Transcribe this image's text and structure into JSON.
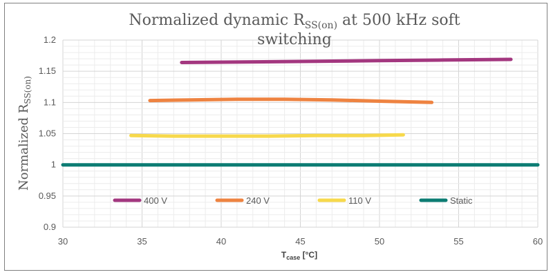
{
  "chart_data": {
    "type": "line",
    "title_prefix": "Normalized dynamic R",
    "title_subscript": "SS(on)",
    "title_suffix": " at 500 kHz soft",
    "title_line2": "switching",
    "ylabel_prefix": "Normalized R",
    "ylabel_subscript": "SS(on)",
    "xlabel_prefix": "T",
    "xlabel_subscript": "case",
    "xlabel_suffix": " [°C]",
    "xlim": [
      30,
      60
    ],
    "ylim": [
      0.9,
      1.2
    ],
    "x_ticks": [
      30,
      35,
      40,
      45,
      50,
      55,
      60
    ],
    "x_tick_labels": [
      "30",
      "35",
      "40",
      "45",
      "50",
      "55",
      "60"
    ],
    "y_ticks": [
      0.9,
      0.95,
      1.0,
      1.05,
      1.1,
      1.15,
      1.2
    ],
    "y_tick_labels": [
      "0.9",
      "0.95",
      "1",
      "1.05",
      "1.1",
      "1.15",
      "1.2"
    ],
    "grid": true,
    "legend_position": "inside-bottom",
    "series": [
      {
        "name": "400 V",
        "color": "#a3377f",
        "x": [
          37.5,
          42,
          46,
          50,
          54,
          58.3
        ],
        "y": [
          1.164,
          1.165,
          1.166,
          1.167,
          1.168,
          1.169
        ]
      },
      {
        "name": "240 V",
        "color": "#ee8341",
        "x": [
          35.5,
          38,
          41,
          44,
          47,
          50,
          53.3
        ],
        "y": [
          1.103,
          1.104,
          1.105,
          1.105,
          1.104,
          1.102,
          1.1
        ]
      },
      {
        "name": "110 V",
        "color": "#f7d94c",
        "x": [
          34.3,
          37,
          40,
          43,
          46,
          49,
          51.5
        ],
        "y": [
          1.047,
          1.046,
          1.046,
          1.046,
          1.047,
          1.047,
          1.048
        ]
      },
      {
        "name": "Static",
        "color": "#0c7c73",
        "x": [
          30,
          60
        ],
        "y": [
          1.0,
          1.0
        ]
      }
    ]
  }
}
